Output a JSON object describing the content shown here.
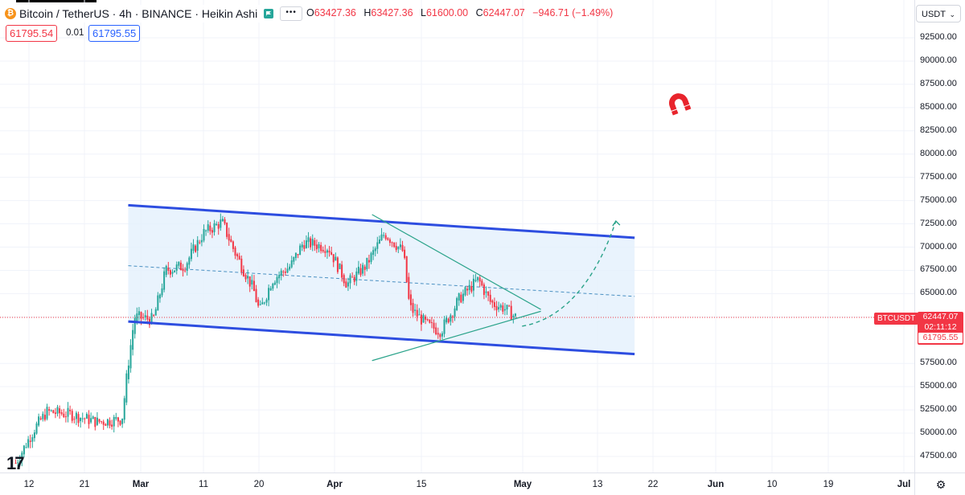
{
  "header": {
    "symbol_title": "Bitcoin / TetherUS · 4h · BINANCE · Heikin Ashi",
    "coin_icon": "bitcoin-icon",
    "more_label": "•••",
    "ohlc": {
      "o_label": "O",
      "o": "63427.36",
      "h_label": "H",
      "h": "63427.36",
      "l_label": "L",
      "l": "61600.00",
      "c_label": "C",
      "c": "62447.07",
      "change": "−946.71 (−1.49%)"
    }
  },
  "trade": {
    "sell": "61795.54",
    "spread": "0.01",
    "buy": "61795.55"
  },
  "currency": {
    "label": "USDT"
  },
  "price_axis": {
    "ticks": [
      "92500.00",
      "90000.00",
      "87500.00",
      "85000.00",
      "82500.00",
      "80000.00",
      "77500.00",
      "75000.00",
      "72500.00",
      "70000.00",
      "67500.00",
      "65000.00",
      "62500.00",
      "57500.00",
      "55000.00",
      "52500.00",
      "50000.00",
      "47500.00"
    ],
    "symbol_tag": "BTCUSDT",
    "last_price": "62447.07",
    "countdown": "02:11:12",
    "ask_price": "61795.55"
  },
  "time_axis": {
    "ticks": [
      {
        "label": "12",
        "bold": false
      },
      {
        "label": "21",
        "bold": false
      },
      {
        "label": "Mar",
        "bold": true
      },
      {
        "label": "11",
        "bold": false
      },
      {
        "label": "20",
        "bold": false
      },
      {
        "label": "Apr",
        "bold": true
      },
      {
        "label": "15",
        "bold": false
      },
      {
        "label": "May",
        "bold": true
      },
      {
        "label": "13",
        "bold": false
      },
      {
        "label": "22",
        "bold": false
      },
      {
        "label": "Jun",
        "bold": true
      },
      {
        "label": "10",
        "bold": false
      },
      {
        "label": "19",
        "bold": false
      },
      {
        "label": "Jul",
        "bold": true
      }
    ]
  },
  "colors": {
    "up": "#26a69a",
    "down": "#f23645",
    "channel": "#2d4de0",
    "channel_fill": "#e3f0fc",
    "triangle": "#2aa38a",
    "midline": "#4a90c2",
    "price_line": "#f23645"
  },
  "chart_data": {
    "type": "candlestick",
    "title": "Bitcoin / TetherUS · 4h · BINANCE · Heikin Ashi",
    "interval": "4h",
    "x_range": [
      "2024-02-10",
      "2024-07-01"
    ],
    "y_range": [
      46500,
      95000
    ],
    "last_close": 62447.07,
    "price_path": [
      [
        "2024-02-10",
        46800
      ],
      [
        "2024-02-13",
        50500
      ],
      [
        "2024-02-15",
        52300
      ],
      [
        "2024-02-19",
        52000
      ],
      [
        "2024-02-23",
        51200
      ],
      [
        "2024-02-27",
        51500
      ],
      [
        "2024-02-28",
        57500
      ],
      [
        "2024-02-29",
        62500
      ],
      [
        "2024-03-03",
        62200
      ],
      [
        "2024-03-05",
        67500
      ],
      [
        "2024-03-08",
        68000
      ],
      [
        "2024-03-11",
        71500
      ],
      [
        "2024-03-14",
        72700
      ],
      [
        "2024-03-16",
        69500
      ],
      [
        "2024-03-19",
        65500
      ],
      [
        "2024-03-20",
        63000
      ],
      [
        "2024-03-22",
        66500
      ],
      [
        "2024-03-25",
        68000
      ],
      [
        "2024-03-27",
        70500
      ],
      [
        "2024-03-31",
        70000
      ],
      [
        "2024-04-03",
        66000
      ],
      [
        "2024-04-06",
        68000
      ],
      [
        "2024-04-09",
        71500
      ],
      [
        "2024-04-12",
        69500
      ],
      [
        "2024-04-13",
        63500
      ],
      [
        "2024-04-16",
        61500
      ],
      [
        "2024-04-18",
        61000
      ],
      [
        "2024-04-21",
        64500
      ],
      [
        "2024-04-24",
        66500
      ],
      [
        "2024-04-26",
        64000
      ],
      [
        "2024-04-28",
        63500
      ],
      [
        "2024-04-30",
        62447
      ]
    ],
    "drawings": {
      "channel_upper": [
        [
          "2024-02-28",
          74500
        ],
        [
          "2024-05-19",
          71000
        ]
      ],
      "channel_lower": [
        [
          "2024-02-28",
          62000
        ],
        [
          "2024-05-19",
          58500
        ]
      ],
      "channel_mid": [
        [
          "2024-02-28",
          68000
        ],
        [
          "2024-05-19",
          64700
        ]
      ],
      "triangle_top": [
        [
          "2024-04-07",
          73500
        ],
        [
          "2024-05-04",
          63300
        ]
      ],
      "triangle_bottom": [
        [
          "2024-04-07",
          57800
        ],
        [
          "2024-05-04",
          63100
        ]
      ],
      "projection_curve": [
        [
          "2024-05-01",
          61500
        ],
        [
          "2024-05-16",
          72800
        ]
      ]
    }
  }
}
